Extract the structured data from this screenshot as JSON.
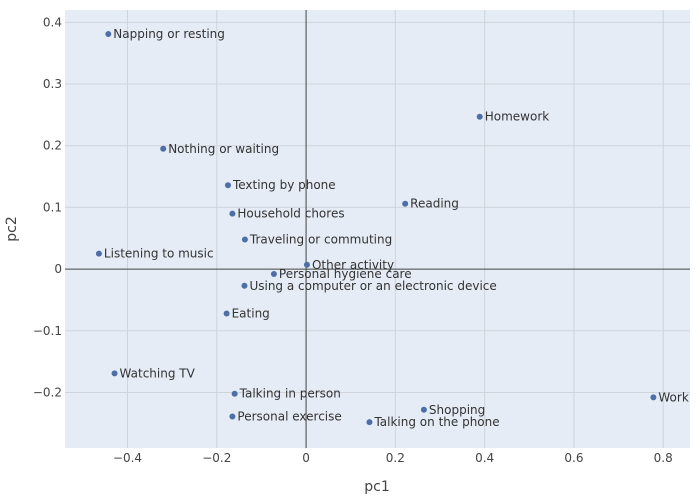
{
  "chart_data": {
    "type": "scatter",
    "xlabel": "pc1",
    "ylabel": "pc2",
    "xlim": [
      -0.54,
      0.86
    ],
    "ylim": [
      -0.29,
      0.42
    ],
    "grid": true,
    "zero_lines": true,
    "marker_color": "#4c6fa8",
    "plot_background": "#e5ecf6",
    "xticks": [
      {
        "value": -0.4,
        "label": "−0.4"
      },
      {
        "value": -0.2,
        "label": "−0.2"
      },
      {
        "value": 0,
        "label": "0"
      },
      {
        "value": 0.2,
        "label": "0.2"
      },
      {
        "value": 0.4,
        "label": "0.4"
      },
      {
        "value": 0.6,
        "label": "0.6"
      },
      {
        "value": 0.8,
        "label": "0.8"
      }
    ],
    "yticks": [
      {
        "value": -0.2,
        "label": "−0.2"
      },
      {
        "value": -0.1,
        "label": "−0.1"
      },
      {
        "value": 0,
        "label": "0"
      },
      {
        "value": 0.1,
        "label": "0.1"
      },
      {
        "value": 0.2,
        "label": "0.2"
      },
      {
        "value": 0.3,
        "label": "0.3"
      },
      {
        "value": 0.4,
        "label": "0.4"
      }
    ],
    "points": [
      {
        "label": "Napping or resting",
        "x": -0.443,
        "y": 0.381
      },
      {
        "label": "Homework",
        "x": 0.389,
        "y": 0.247
      },
      {
        "label": "Nothing or waiting",
        "x": -0.32,
        "y": 0.195
      },
      {
        "label": "Texting by phone",
        "x": -0.175,
        "y": 0.136
      },
      {
        "label": "Reading",
        "x": 0.222,
        "y": 0.106
      },
      {
        "label": "Household chores",
        "x": -0.165,
        "y": 0.09
      },
      {
        "label": "Traveling or commuting",
        "x": -0.137,
        "y": 0.048
      },
      {
        "label": "Listening to music",
        "x": -0.464,
        "y": 0.025
      },
      {
        "label": "Other activity",
        "x": 0.002,
        "y": 0.007
      },
      {
        "label": "Personal hygiene care",
        "x": -0.072,
        "y": -0.008
      },
      {
        "label": "Using a computer or an electronic device",
        "x": -0.138,
        "y": -0.027
      },
      {
        "label": "Eating",
        "x": -0.178,
        "y": -0.072
      },
      {
        "label": "Watching TV",
        "x": -0.429,
        "y": -0.169
      },
      {
        "label": "Talking in person",
        "x": -0.16,
        "y": -0.202
      },
      {
        "label": "Work",
        "x": 0.778,
        "y": -0.208
      },
      {
        "label": "Shopping",
        "x": 0.264,
        "y": -0.228
      },
      {
        "label": "Personal exercise",
        "x": -0.165,
        "y": -0.239
      },
      {
        "label": "Talking on the phone",
        "x": 0.142,
        "y": -0.248
      }
    ]
  }
}
